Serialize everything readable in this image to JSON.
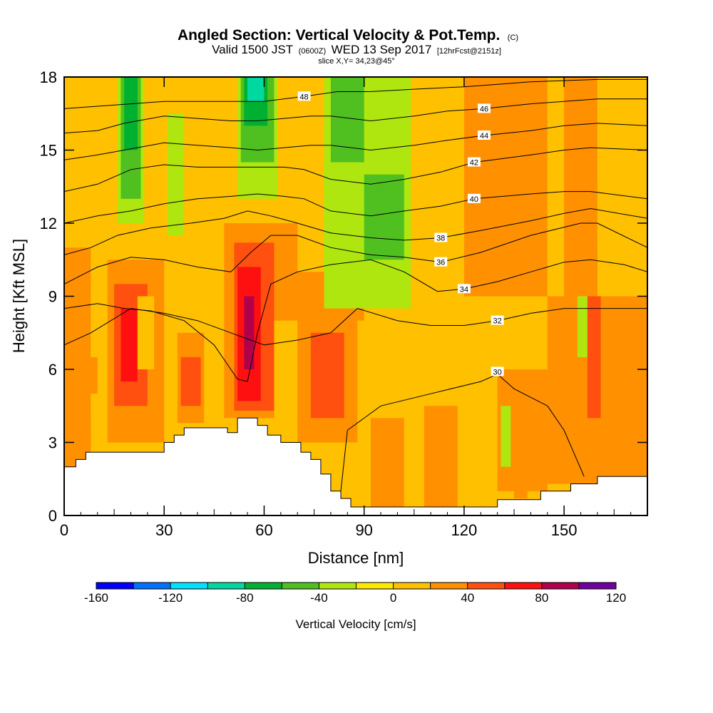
{
  "chart_data": {
    "type": "heatmap",
    "title": "Angled Section: Vertical Velocity & Pot.Temp.",
    "title_mark": "(C)",
    "subtitle_parts": [
      "Valid 1500 JST",
      "(0600Z)",
      "WED 13 Sep 2017",
      "[12hrFcst@2151z]"
    ],
    "slice_label": "slice X,Y= 34,23@45°",
    "xlabel": "Distance [nm]",
    "ylabel": "Height [Kft MSL]",
    "xlim": [
      0,
      175
    ],
    "ylim": [
      0,
      18
    ],
    "x_ticks": [
      0,
      30,
      60,
      90,
      120,
      150
    ],
    "y_ticks": [
      0,
      3,
      6,
      9,
      12,
      15,
      18
    ],
    "colorbar": {
      "title": "Vertical Velocity [cm/s]",
      "min": -160,
      "max": 120,
      "step": 20,
      "tick_labels": [
        "-160",
        "-120",
        "-80",
        "-40",
        "0",
        "40",
        "80",
        "120"
      ],
      "colors": [
        "#0000ff",
        "#0070ff",
        "#00e0ff",
        "#00d8a0",
        "#00b030",
        "#50c020",
        "#b0e610",
        "#ffe800",
        "#ffc000",
        "#ff9000",
        "#ff5010",
        "#ff1010",
        "#b0004c",
        "#7000a0"
      ]
    },
    "terrain": [
      [
        0,
        2.0
      ],
      [
        3.5,
        2.0
      ],
      [
        3.5,
        2.3
      ],
      [
        6.5,
        2.3
      ],
      [
        6.5,
        2.6
      ],
      [
        30,
        2.6
      ],
      [
        30,
        3.0
      ],
      [
        33,
        3.0
      ],
      [
        33,
        3.3
      ],
      [
        36,
        3.3
      ],
      [
        36,
        3.6
      ],
      [
        47,
        3.6
      ],
      [
        49,
        3.6
      ],
      [
        49,
        3.4
      ],
      [
        52,
        3.4
      ],
      [
        52,
        4.0
      ],
      [
        58,
        4.0
      ],
      [
        58,
        3.7
      ],
      [
        61,
        3.7
      ],
      [
        61,
        3.3
      ],
      [
        65,
        3.3
      ],
      [
        65,
        3.0
      ],
      [
        71,
        3.0
      ],
      [
        71,
        2.6
      ],
      [
        74,
        2.6
      ],
      [
        74,
        2.3
      ],
      [
        77,
        2.3
      ],
      [
        77,
        1.7
      ],
      [
        80,
        1.7
      ],
      [
        80,
        1.0
      ],
      [
        83,
        1.0
      ],
      [
        83,
        0.7
      ],
      [
        86,
        0.7
      ],
      [
        86,
        0.35
      ],
      [
        130,
        0.35
      ],
      [
        130,
        0.65
      ],
      [
        143,
        0.65
      ],
      [
        143,
        1.0
      ],
      [
        152,
        1.0
      ],
      [
        152,
        1.3
      ],
      [
        160,
        1.3
      ],
      [
        160,
        1.6
      ],
      [
        175,
        1.6
      ]
    ],
    "velocity_cells": [
      {
        "x0": 0,
        "x1": 175,
        "y0": 0,
        "y1": 18,
        "v": 10
      },
      {
        "x0": 0,
        "x1": 8,
        "y0": 2,
        "y1": 11,
        "v": 25
      },
      {
        "x0": 8,
        "x1": 13,
        "y0": 4,
        "y1": 11,
        "v": 5
      },
      {
        "x0": 13,
        "x1": 30,
        "y0": 3,
        "y1": 10.5,
        "v": 30
      },
      {
        "x0": 15,
        "x1": 25,
        "y0": 4.5,
        "y1": 9.5,
        "v": 50
      },
      {
        "x0": 17,
        "x1": 22,
        "y0": 5.5,
        "y1": 8.5,
        "v": 70
      },
      {
        "x0": 7,
        "x1": 10,
        "y0": 5,
        "y1": 6.5,
        "v": 30
      },
      {
        "x0": 22,
        "x1": 27,
        "y0": 6,
        "y1": 9,
        "v": 5
      },
      {
        "x0": 34,
        "x1": 42,
        "y0": 3.8,
        "y1": 7.5,
        "v": 30
      },
      {
        "x0": 35,
        "x1": 41,
        "y0": 4.5,
        "y1": 6.5,
        "v": 45
      },
      {
        "x0": 42,
        "x1": 50,
        "y0": 3.6,
        "y1": 10,
        "v": 5
      },
      {
        "x0": 48,
        "x1": 70,
        "y0": 4,
        "y1": 12,
        "v": 30
      },
      {
        "x0": 51,
        "x1": 63,
        "y0": 4.3,
        "y1": 11.2,
        "v": 50
      },
      {
        "x0": 52,
        "x1": 59,
        "y0": 4.7,
        "y1": 10.2,
        "v": 70
      },
      {
        "x0": 54,
        "x1": 57,
        "y0": 6,
        "y1": 9,
        "v": 90
      },
      {
        "x0": 63,
        "x1": 70,
        "y0": 3.3,
        "y1": 8,
        "v": 5
      },
      {
        "x0": 70,
        "x1": 90,
        "y0": 3,
        "y1": 10,
        "v": 25
      },
      {
        "x0": 74,
        "x1": 84,
        "y0": 4,
        "y1": 7.5,
        "v": 40
      },
      {
        "x0": 77,
        "x1": 80,
        "y0": 4.5,
        "y1": 6.5,
        "v": 55
      },
      {
        "x0": 88,
        "x1": 130,
        "y0": 0.35,
        "y1": 8,
        "v": 5
      },
      {
        "x0": 92,
        "x1": 102,
        "y0": 0.35,
        "y1": 4,
        "v": 25
      },
      {
        "x0": 108,
        "x1": 118,
        "y0": 0.35,
        "y1": 4.5,
        "v": 25
      },
      {
        "x0": 130,
        "x1": 145,
        "y0": 1,
        "y1": 6,
        "v": 25
      },
      {
        "x0": 131,
        "x1": 134,
        "y0": 2,
        "y1": 4.5,
        "v": -25
      },
      {
        "x0": 135,
        "x1": 139,
        "y0": 0.7,
        "y1": 3.5,
        "v": 30
      },
      {
        "x0": 145,
        "x1": 175,
        "y0": 1.3,
        "y1": 11,
        "v": 25
      },
      {
        "x0": 154,
        "x1": 157,
        "y0": 6.5,
        "y1": 10,
        "v": -25
      },
      {
        "x0": 157,
        "x1": 161,
        "y0": 4,
        "y1": 11,
        "v": 55
      },
      {
        "x0": 166,
        "x1": 174,
        "y0": 3,
        "y1": 7.5,
        "v": 35
      },
      {
        "x0": 120,
        "x1": 160,
        "y0": 9,
        "y1": 18,
        "v": 25
      },
      {
        "x0": 145,
        "x1": 150,
        "y0": 9,
        "y1": 18,
        "v": 5
      },
      {
        "x0": 160,
        "x1": 175,
        "y0": 9,
        "y1": 18,
        "v": 15
      },
      {
        "x0": 0,
        "x1": 8,
        "y0": 11,
        "y1": 18,
        "v": 15
      },
      {
        "x0": 16,
        "x1": 24,
        "y0": 12,
        "y1": 18,
        "v": -25
      },
      {
        "x0": 17,
        "x1": 23,
        "y0": 13,
        "y1": 18,
        "v": -45
      },
      {
        "x0": 18,
        "x1": 22,
        "y0": 15,
        "y1": 18,
        "v": -65
      },
      {
        "x0": 31,
        "x1": 36,
        "y0": 11.5,
        "y1": 16.5,
        "v": -25
      },
      {
        "x0": 52,
        "x1": 64,
        "y0": 13,
        "y1": 18,
        "v": -25
      },
      {
        "x0": 53,
        "x1": 63,
        "y0": 14.5,
        "y1": 18,
        "v": -50
      },
      {
        "x0": 54,
        "x1": 61,
        "y0": 16,
        "y1": 18,
        "v": -70
      },
      {
        "x0": 55,
        "x1": 60,
        "y0": 17,
        "y1": 18,
        "v": -90
      },
      {
        "x0": 78,
        "x1": 104,
        "y0": 8.5,
        "y1": 18,
        "v": -25
      },
      {
        "x0": 80,
        "x1": 90,
        "y0": 14.5,
        "y1": 18,
        "v": -45
      },
      {
        "x0": 90,
        "x1": 102,
        "y0": 10.5,
        "y1": 14,
        "v": -45
      },
      {
        "x0": 94,
        "x1": 100,
        "y0": 11,
        "y1": 13,
        "v": -60
      },
      {
        "x0": 105,
        "x1": 120,
        "y0": 12,
        "y1": 18,
        "v": 5
      }
    ],
    "theta_contours": [
      {
        "level": 30,
        "label": "30",
        "label_at": [
          130,
          5.9
        ],
        "points": [
          [
            83,
            1.0
          ],
          [
            85,
            3.5
          ],
          [
            95,
            4.5
          ],
          [
            110,
            5
          ],
          [
            125,
            5.5
          ],
          [
            130,
            5.8
          ],
          [
            135,
            5.2
          ],
          [
            145,
            4.5
          ],
          [
            150,
            3.5
          ],
          [
            156,
            1.6
          ]
        ]
      },
      {
        "level": 32,
        "label": "32",
        "label_at": [
          130,
          8.0
        ],
        "points": [
          [
            0,
            7.0
          ],
          [
            8,
            7.5
          ],
          [
            20,
            8.5
          ],
          [
            30,
            8.3
          ],
          [
            40,
            8
          ],
          [
            50,
            7.5
          ],
          [
            60,
            7
          ],
          [
            70,
            7.2
          ],
          [
            80,
            7.5
          ],
          [
            88,
            8.5
          ],
          [
            100,
            8.0
          ],
          [
            110,
            7.8
          ],
          [
            120,
            7.8
          ],
          [
            130,
            8.0
          ],
          [
            140,
            8.3
          ],
          [
            150,
            8.5
          ],
          [
            160,
            8.5
          ],
          [
            175,
            8.5
          ]
        ]
      },
      {
        "level": 34,
        "label": "34",
        "label_at": [
          120,
          9.3
        ],
        "points": [
          [
            0,
            8.5
          ],
          [
            10,
            8.7
          ],
          [
            18,
            8.5
          ],
          [
            26,
            8.4
          ],
          [
            36,
            8.0
          ],
          [
            45,
            7.0
          ],
          [
            52,
            5.6
          ],
          [
            55,
            5.5
          ],
          [
            58,
            7.5
          ],
          [
            62,
            9.5
          ],
          [
            70,
            10.0
          ],
          [
            80,
            10.3
          ],
          [
            92,
            10.5
          ],
          [
            102,
            10.0
          ],
          [
            112,
            9.2
          ],
          [
            120,
            9.3
          ],
          [
            130,
            9.6
          ],
          [
            140,
            10
          ],
          [
            150,
            10.4
          ],
          [
            158,
            10.5
          ],
          [
            168,
            10.3
          ],
          [
            175,
            10
          ]
        ]
      },
      {
        "level": 36,
        "label": "36",
        "label_at": [
          113,
          10.4
        ],
        "points": [
          [
            0,
            9.5
          ],
          [
            10,
            10.2
          ],
          [
            20,
            10.6
          ],
          [
            30,
            10.5
          ],
          [
            40,
            10.2
          ],
          [
            50,
            10.0
          ],
          [
            56,
            10.8
          ],
          [
            62,
            11.5
          ],
          [
            70,
            11.5
          ],
          [
            80,
            11.0
          ],
          [
            92,
            10.7
          ],
          [
            102,
            10.6
          ],
          [
            113,
            10.4
          ],
          [
            125,
            10.8
          ],
          [
            140,
            11.5
          ],
          [
            155,
            12.0
          ],
          [
            160,
            12.0
          ],
          [
            175,
            11.0
          ]
        ]
      },
      {
        "level": 38,
        "label": "38",
        "label_at": [
          113,
          11.4
        ],
        "points": [
          [
            0,
            10.7
          ],
          [
            8,
            11.0
          ],
          [
            16,
            11.5
          ],
          [
            26,
            11.8
          ],
          [
            38,
            12.0
          ],
          [
            48,
            12.2
          ],
          [
            55,
            12.5
          ],
          [
            62,
            12.3
          ],
          [
            70,
            12.0
          ],
          [
            80,
            11.6
          ],
          [
            92,
            11.4
          ],
          [
            102,
            11.3
          ],
          [
            113,
            11.4
          ],
          [
            125,
            11.7
          ],
          [
            140,
            12.1
          ],
          [
            150,
            12.4
          ],
          [
            158,
            12.6
          ],
          [
            175,
            12.2
          ]
        ]
      },
      {
        "level": 40,
        "label": "40",
        "label_at": [
          123,
          13.0
        ],
        "points": [
          [
            0,
            12.0
          ],
          [
            10,
            12.3
          ],
          [
            20,
            12.5
          ],
          [
            30,
            12.8
          ],
          [
            40,
            13.0
          ],
          [
            50,
            13.1
          ],
          [
            58,
            13.2
          ],
          [
            66,
            13.1
          ],
          [
            72,
            13.0
          ],
          [
            80,
            12.5
          ],
          [
            92,
            12.3
          ],
          [
            102,
            12.5
          ],
          [
            113,
            12.7
          ],
          [
            123,
            13.0
          ],
          [
            140,
            13.2
          ],
          [
            150,
            13.3
          ],
          [
            158,
            13.3
          ],
          [
            175,
            13.0
          ]
        ]
      },
      {
        "level": 42,
        "label": "42",
        "label_at": [
          123,
          14.5
        ],
        "points": [
          [
            0,
            13.3
          ],
          [
            10,
            13.6
          ],
          [
            20,
            14.2
          ],
          [
            30,
            14.4
          ],
          [
            40,
            14.3
          ],
          [
            50,
            14.3
          ],
          [
            58,
            14.3
          ],
          [
            66,
            14.3
          ],
          [
            72,
            14.2
          ],
          [
            80,
            13.8
          ],
          [
            92,
            13.6
          ],
          [
            102,
            13.8
          ],
          [
            113,
            14.1
          ],
          [
            123,
            14.5
          ],
          [
            140,
            14.8
          ],
          [
            150,
            15.0
          ],
          [
            158,
            15.1
          ],
          [
            175,
            15.0
          ]
        ]
      },
      {
        "level": 44,
        "label": "44",
        "label_at": [
          126,
          15.6
        ],
        "points": [
          [
            0,
            14.6
          ],
          [
            10,
            14.8
          ],
          [
            18,
            15.0
          ],
          [
            30,
            15.3
          ],
          [
            40,
            15.2
          ],
          [
            50,
            15.1
          ],
          [
            58,
            15.0
          ],
          [
            66,
            15.1
          ],
          [
            74,
            15.2
          ],
          [
            80,
            15.2
          ],
          [
            92,
            15.0
          ],
          [
            105,
            15.2
          ],
          [
            115,
            15.4
          ],
          [
            126,
            15.6
          ],
          [
            140,
            15.8
          ],
          [
            150,
            16.0
          ],
          [
            160,
            16.1
          ],
          [
            175,
            16.0
          ]
        ]
      },
      {
        "level": 46,
        "label": "46",
        "label_at": [
          126,
          16.7
        ],
        "points": [
          [
            0,
            15.7
          ],
          [
            10,
            15.8
          ],
          [
            18,
            16.1
          ],
          [
            30,
            16.4
          ],
          [
            40,
            16.3
          ],
          [
            50,
            16.2
          ],
          [
            58,
            16.2
          ],
          [
            66,
            16.3
          ],
          [
            74,
            16.4
          ],
          [
            80,
            16.4
          ],
          [
            92,
            16.2
          ],
          [
            105,
            16.4
          ],
          [
            115,
            16.6
          ],
          [
            126,
            16.7
          ],
          [
            140,
            16.9
          ],
          [
            150,
            17.0
          ],
          [
            160,
            17.1
          ],
          [
            175,
            17.1
          ]
        ]
      },
      {
        "level": 48,
        "label": "48",
        "label_at": [
          72,
          17.2
        ],
        "points": [
          [
            0,
            16.7
          ],
          [
            10,
            16.8
          ],
          [
            20,
            16.9
          ],
          [
            30,
            17.0
          ],
          [
            40,
            17.0
          ],
          [
            50,
            17.0
          ],
          [
            60,
            17.0
          ],
          [
            72,
            17.2
          ],
          [
            82,
            17.4
          ],
          [
            92,
            17.4
          ],
          [
            105,
            17.5
          ],
          [
            120,
            17.6
          ],
          [
            140,
            17.8
          ],
          [
            160,
            17.9
          ],
          [
            175,
            17.9
          ]
        ]
      }
    ]
  }
}
